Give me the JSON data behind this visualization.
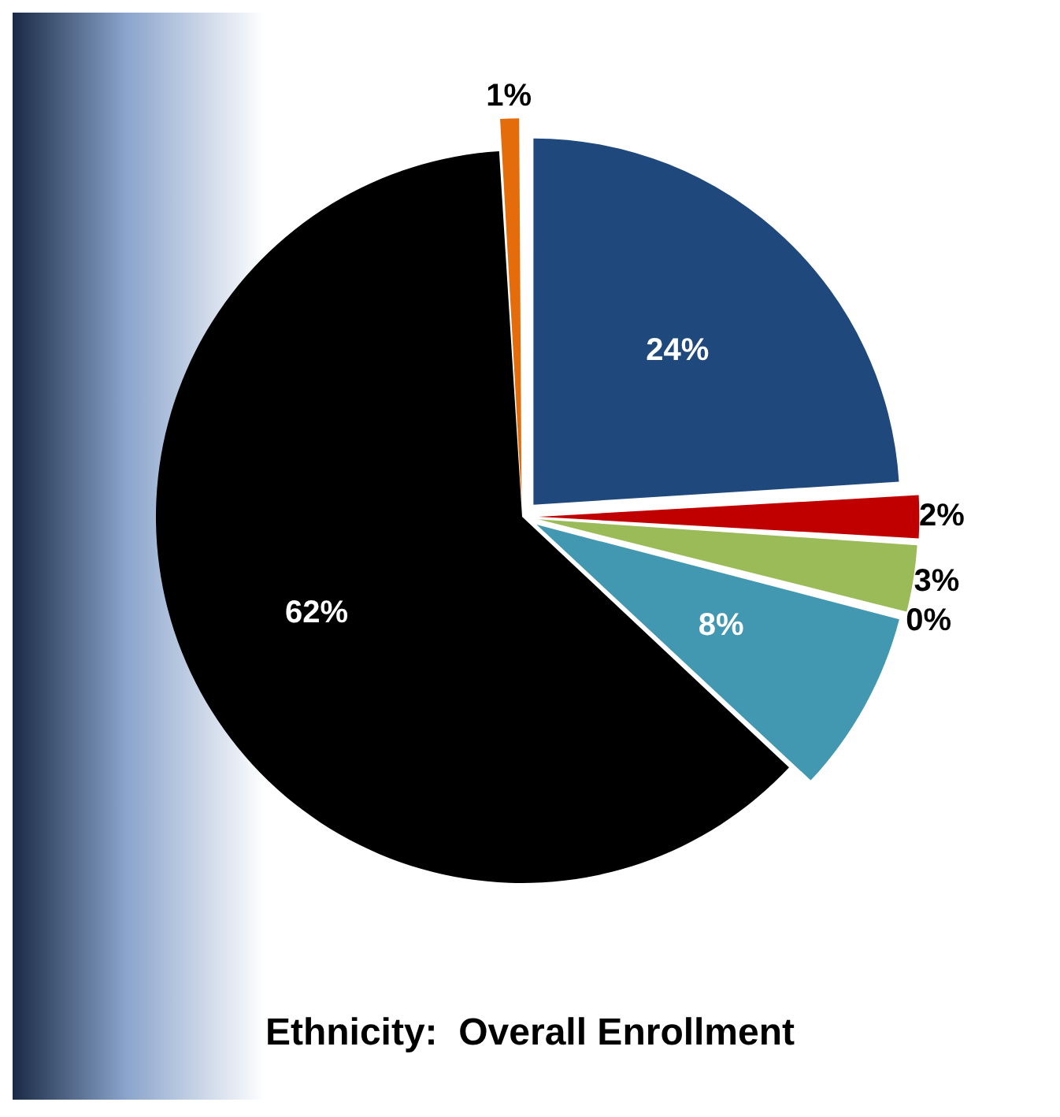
{
  "chart_data": {
    "type": "pie",
    "title": "Ethnicity:  Overall Enrollment",
    "categories": [
      null,
      null,
      null,
      null,
      null,
      null,
      null
    ],
    "values": [
      24,
      2,
      3,
      0,
      8,
      62,
      1
    ],
    "value_labels": [
      "24%",
      "2%",
      "3%",
      "0%",
      "8%",
      "62%",
      "1%"
    ],
    "colors": [
      "#1f497d",
      "#c00000",
      "#9bbb59",
      "#7030a0",
      "#4198b0",
      "#000000",
      "#e46c0a"
    ],
    "legend": false
  }
}
